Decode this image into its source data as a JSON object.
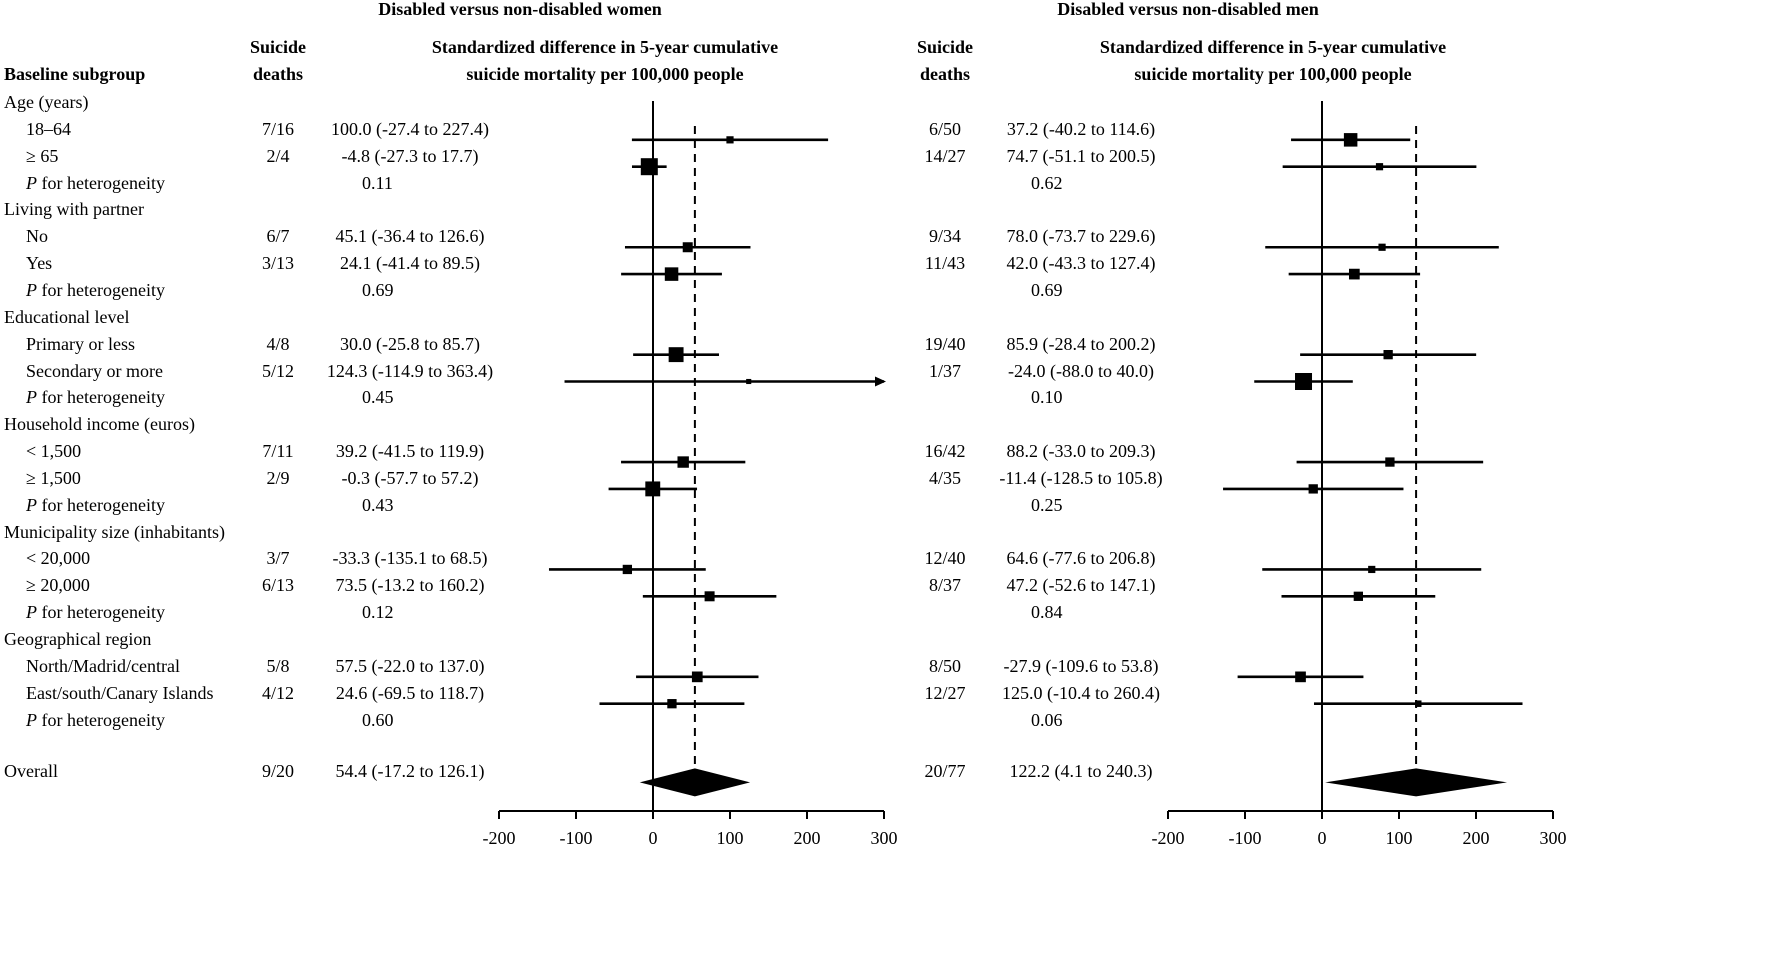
{
  "panels": [
    {
      "title": "Disabled versus non-disabled women",
      "deaths_header": [
        "Suicide",
        "deaths"
      ],
      "plot_header": [
        "Standardized difference in 5-year cumulative",
        "suicide mortality per 100,000 people"
      ]
    },
    {
      "title": "Disabled versus non-disabled men",
      "deaths_header": [
        "Suicide",
        "deaths"
      ],
      "plot_header": [
        "Standardized difference in 5-year cumulative",
        "suicide mortality per 100,000 people"
      ]
    }
  ],
  "subgroup_header": "Baseline subgroup",
  "rows": [
    {
      "label": "Age (years)",
      "kind": "group"
    },
    {
      "label": "18–64",
      "kind": "item",
      "women": {
        "deaths": "7/16",
        "ci": "100.0 (-27.4 to 227.4)",
        "est": 100.0,
        "lo": -27.4,
        "hi": 227.4,
        "w": 0.3
      },
      "men": {
        "deaths": "6/50",
        "ci": "37.2 (-40.2 to 114.6)",
        "est": 37.2,
        "lo": -40.2,
        "hi": 114.6,
        "w": 0.75
      }
    },
    {
      "label": "≥ 65",
      "kind": "item",
      "women": {
        "deaths": "2/4",
        "ci": "-4.8 (-27.3 to 17.7)",
        "est": -4.8,
        "lo": -27.3,
        "hi": 17.7,
        "w": 1.0
      },
      "men": {
        "deaths": "14/27",
        "ci": "74.7 (-51.1 to 200.5)",
        "est": 74.7,
        "lo": -51.1,
        "hi": 200.5,
        "w": 0.3
      }
    },
    {
      "label": "for heterogeneity",
      "italic_prefix": "P",
      "kind": "p",
      "women": {
        "p": "0.11"
      },
      "men": {
        "p": "0.62"
      }
    },
    {
      "label": "Living with partner",
      "kind": "group"
    },
    {
      "label": "No",
      "kind": "item",
      "women": {
        "deaths": "6/7",
        "ci": "45.1 (-36.4 to 126.6)",
        "est": 45.1,
        "lo": -36.4,
        "hi": 126.6,
        "w": 0.5
      },
      "men": {
        "deaths": "9/34",
        "ci": "78.0 (-73.7 to 229.6)",
        "est": 78.0,
        "lo": -73.7,
        "hi": 229.6,
        "w": 0.3
      }
    },
    {
      "label": "Yes",
      "kind": "item",
      "women": {
        "deaths": "3/13",
        "ci": "24.1 (-41.4 to 89.5)",
        "est": 24.1,
        "lo": -41.4,
        "hi": 89.5,
        "w": 0.75
      },
      "men": {
        "deaths": "11/43",
        "ci": "42.0 (-43.3 to 127.4)",
        "est": 42.0,
        "lo": -43.3,
        "hi": 127.4,
        "w": 0.55
      }
    },
    {
      "label": "for heterogeneity",
      "italic_prefix": "P",
      "kind": "p",
      "women": {
        "p": "0.69"
      },
      "men": {
        "p": "0.69"
      }
    },
    {
      "label": "Educational level",
      "kind": "group"
    },
    {
      "label": "Primary or less",
      "kind": "item",
      "women": {
        "deaths": "4/8",
        "ci": "30.0 (-25.8 to 85.7)",
        "est": 30.0,
        "lo": -25.8,
        "hi": 85.7,
        "w": 0.85
      },
      "men": {
        "deaths": "19/40",
        "ci": "85.9 (-28.4 to 200.2)",
        "est": 85.9,
        "lo": -28.4,
        "hi": 200.2,
        "w": 0.45
      }
    },
    {
      "label": "Secondary or more",
      "kind": "item",
      "women": {
        "deaths": "5/12",
        "ci": "124.3 (-114.9 to 363.4)",
        "est": 124.3,
        "lo": -114.9,
        "hi": 363.4,
        "w": 0.15
      },
      "men": {
        "deaths": "1/37",
        "ci": "-24.0 (-88.0 to 40.0)",
        "est": -24.0,
        "lo": -88.0,
        "hi": 40.0,
        "w": 1.0
      }
    },
    {
      "label": "for heterogeneity",
      "italic_prefix": "P",
      "kind": "p",
      "women": {
        "p": "0.45"
      },
      "men": {
        "p": "0.10"
      }
    },
    {
      "label": "Household income (euros)",
      "kind": "group"
    },
    {
      "label": "< 1,500",
      "kind": "item",
      "women": {
        "deaths": "7/11",
        "ci": "39.2 (-41.5 to 119.9)",
        "est": 39.2,
        "lo": -41.5,
        "hi": 119.9,
        "w": 0.6
      },
      "men": {
        "deaths": "16/42",
        "ci": "88.2 (-33.0 to 209.3)",
        "est": 88.2,
        "lo": -33.0,
        "hi": 209.3,
        "w": 0.45
      }
    },
    {
      "label": "≥ 1,500",
      "kind": "item",
      "women": {
        "deaths": "2/9",
        "ci": "-0.3 (-57.7 to 57.2)",
        "est": -0.3,
        "lo": -57.7,
        "hi": 57.2,
        "w": 0.85
      },
      "men": {
        "deaths": "4/35",
        "ci": "-11.4 (-128.5 to 105.8)",
        "est": -11.4,
        "lo": -128.5,
        "hi": 105.8,
        "w": 0.45
      }
    },
    {
      "label": "for heterogeneity",
      "italic_prefix": "P",
      "kind": "p",
      "women": {
        "p": "0.43"
      },
      "men": {
        "p": "0.25"
      }
    },
    {
      "label": "Municipality size (inhabitants)",
      "kind": "group"
    },
    {
      "label": "< 20,000",
      "kind": "item",
      "women": {
        "deaths": "3/7",
        "ci": "-33.3 (-135.1 to 68.5)",
        "est": -33.3,
        "lo": -135.1,
        "hi": 68.5,
        "w": 0.45
      },
      "men": {
        "deaths": "12/40",
        "ci": "64.6 (-77.6 to 206.8)",
        "est": 64.6,
        "lo": -77.6,
        "hi": 206.8,
        "w": 0.3
      }
    },
    {
      "label": "≥ 20,000",
      "kind": "item",
      "women": {
        "deaths": "6/13",
        "ci": "73.5 (-13.2 to 160.2)",
        "est": 73.5,
        "lo": -13.2,
        "hi": 160.2,
        "w": 0.5
      },
      "men": {
        "deaths": "8/37",
        "ci": "47.2 (-52.6 to 147.1)",
        "est": 47.2,
        "lo": -52.6,
        "hi": 147.1,
        "w": 0.45
      }
    },
    {
      "label": "for heterogeneity",
      "italic_prefix": "P",
      "kind": "p",
      "women": {
        "p": "0.12"
      },
      "men": {
        "p": "0.84"
      }
    },
    {
      "label": "Geographical region",
      "kind": "group"
    },
    {
      "label": "North/Madrid/central",
      "kind": "item",
      "women": {
        "deaths": "5/8",
        "ci": "57.5 (-22.0 to 137.0)",
        "est": 57.5,
        "lo": -22.0,
        "hi": 137.0,
        "w": 0.55
      },
      "men": {
        "deaths": "8/50",
        "ci": "-27.9 (-109.6 to 53.8)",
        "est": -27.9,
        "lo": -109.6,
        "hi": 53.8,
        "w": 0.55
      }
    },
    {
      "label": "East/south/Canary Islands",
      "kind": "item",
      "women": {
        "deaths": "4/12",
        "ci": "24.6 (-69.5 to 118.7)",
        "est": 24.6,
        "lo": -69.5,
        "hi": 118.7,
        "w": 0.45
      },
      "men": {
        "deaths": "12/27",
        "ci": "125.0 (-10.4 to 260.4)",
        "est": 125.0,
        "lo": -10.4,
        "hi": 260.4,
        "w": 0.25
      }
    },
    {
      "label": "for heterogeneity",
      "italic_prefix": "P",
      "kind": "p",
      "women": {
        "p": "0.60"
      },
      "men": {
        "p": "0.06"
      }
    },
    {
      "label": "Overall",
      "kind": "overall",
      "women": {
        "deaths": "9/20",
        "ci": "54.4 (-17.2 to 126.1)",
        "est": 54.4,
        "lo": -17.2,
        "hi": 126.1
      },
      "men": {
        "deaths": "20/77",
        "ci": "122.2 (4.1 to 240.3)",
        "est": 122.2,
        "lo": 4.1,
        "hi": 240.3
      }
    }
  ],
  "chart_data": [
    {
      "type": "forest",
      "title": "Disabled versus non-disabled women",
      "xlim": [
        -200,
        300
      ],
      "ticks": [
        -200,
        -100,
        0,
        100,
        200,
        300
      ],
      "tick_labels": [
        "-200",
        "-100",
        "0",
        "100",
        "200",
        "300"
      ],
      "reference_line": 0,
      "overall_line": 54.4
    },
    {
      "type": "forest",
      "title": "Disabled versus non-disabled men",
      "xlim": [
        -200,
        300
      ],
      "ticks": [
        -200,
        -100,
        0,
        100,
        200,
        300
      ],
      "tick_labels": [
        "-200",
        "-100",
        "0",
        "100",
        "200",
        "300"
      ],
      "reference_line": 0,
      "overall_line": 122.2
    }
  ]
}
